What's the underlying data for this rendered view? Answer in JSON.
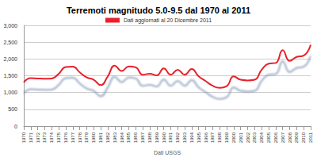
{
  "chart_data": {
    "type": "line",
    "title": "Terremoti magnitudo 5.0-9.5 dal 1970 al 2011",
    "xlabel": "Dati USGS",
    "categories": [
      "1970",
      "1971",
      "1972",
      "1973",
      "1974",
      "1975",
      "1976",
      "1977",
      "1978",
      "1979",
      "1980",
      "1981",
      "1982",
      "1983",
      "1984",
      "1985",
      "1986",
      "1987",
      "1988",
      "1989",
      "1990",
      "1991",
      "1992",
      "1993",
      "1994",
      "1995",
      "1996",
      "1997",
      "1998",
      "1999",
      "2000",
      "2001",
      "2002",
      "2003",
      "2004",
      "2005",
      "2006",
      "2007",
      "2008",
      "2009",
      "2010",
      "2011"
    ],
    "series": [
      {
        "name": "Dati aggiornati al 20 Dicembre 2011",
        "color": "#e8202a",
        "values": [
          1300,
          1430,
          1420,
          1410,
          1420,
          1560,
          1760,
          1770,
          1600,
          1450,
          1380,
          1220,
          1480,
          1800,
          1640,
          1780,
          1750,
          1530,
          1560,
          1510,
          1720,
          1530,
          1680,
          1530,
          1700,
          1480,
          1340,
          1200,
          1140,
          1190,
          1480,
          1380,
          1360,
          1380,
          1680,
          1860,
          1880,
          2260,
          1940,
          2060,
          2100,
          2420
        ]
      }
    ],
    "ylim": [
      0,
      3000
    ],
    "yticks": [
      0,
      500,
      1000,
      1500,
      2000,
      2500,
      3000
    ],
    "grid": true,
    "legend": "top"
  }
}
